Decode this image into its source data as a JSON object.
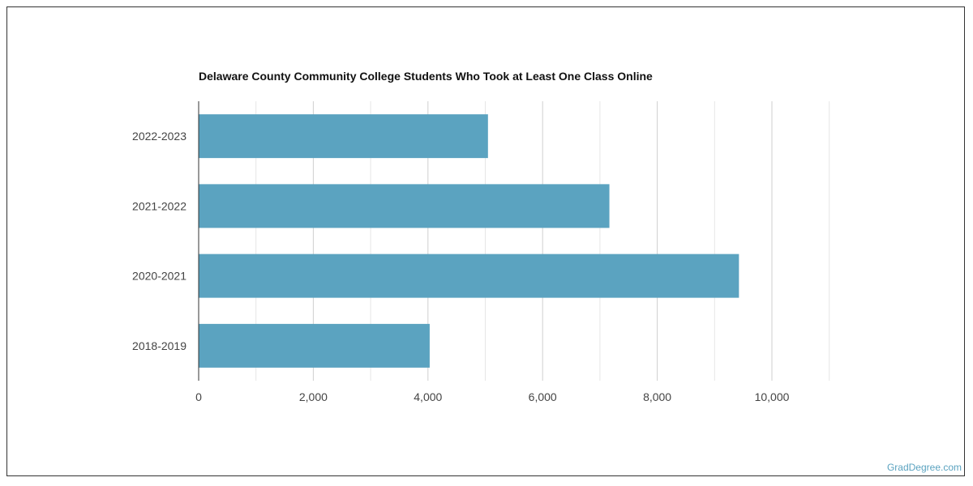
{
  "chart_data": {
    "type": "bar",
    "orientation": "horizontal",
    "title": "Delaware County Community College Students Who Took at Least One Class Online",
    "categories": [
      "2022-2023",
      "2021-2022",
      "2020-2021",
      "2018-2019"
    ],
    "values": [
      5047,
      7165,
      9425,
      4030
    ],
    "xlim": [
      0,
      11000
    ],
    "xticks": [
      0,
      2000,
      4000,
      6000,
      8000,
      10000
    ],
    "xtick_labels": [
      "0",
      "2,000",
      "4,000",
      "6,000",
      "8,000",
      "10,000"
    ],
    "grid": true,
    "bar_color": "#5ba3c0"
  },
  "credit": "GradDegree.com"
}
